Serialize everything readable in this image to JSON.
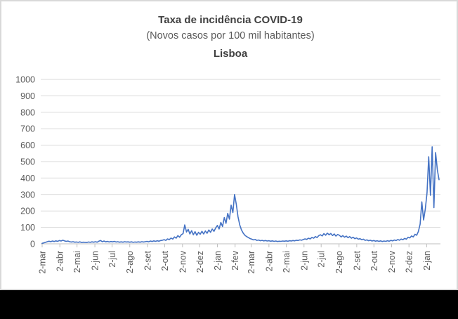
{
  "window": {
    "panel_background": "#ffffff",
    "panel_border_color": "#d9d9d9",
    "backdrop_color": "#000000"
  },
  "chart_data": {
    "type": "line",
    "title": "Taxa de incidência COVID-19",
    "subtitle": "(Novos casos por 100 mil habitantes)",
    "series_title": "Lisboa",
    "xlabel": "",
    "ylabel": "",
    "ylim": [
      0,
      1000
    ],
    "y_ticks": [
      0,
      100,
      200,
      300,
      400,
      500,
      600,
      700,
      800,
      900,
      1000
    ],
    "grid": true,
    "legend": false,
    "line_color": "#4472c4",
    "gridline_color": "#d9d9d9",
    "axis_color": "#bfbfbf",
    "tick_label_color": "#595959",
    "title_color": "#404040",
    "x_tick_labels": [
      "2-mar",
      "2-abr",
      "2-mai",
      "2-jun",
      "2-jul",
      "2-ago",
      "2-set",
      "2-out",
      "2-nov",
      "2-dez",
      "2-jan",
      "2-fev",
      "2-mar",
      "2-abr",
      "2-mai",
      "2-jun",
      "2-jul",
      "2-ago",
      "2-set",
      "2-out",
      "2-nov",
      "2-dez",
      "2-jan"
    ],
    "x_tick_indices": [
      0,
      10.3,
      20.3,
      30.7,
      40.7,
      51,
      61.3,
      71.3,
      81.7,
      91.7,
      102,
      112.3,
      121.7,
      132,
      142.1,
      152.4,
      162.4,
      172.8,
      183.1,
      193.1,
      203.4,
      213.5,
      223.8
    ],
    "x_sampling_note": "daily series from 2-mar (2020) to late jan (2022), values estimated at 3-day steps",
    "values": [
      3,
      6,
      9,
      13,
      16,
      13,
      17,
      14,
      18,
      15,
      20,
      17,
      22,
      18,
      15,
      17,
      13,
      11,
      13,
      10,
      11,
      9,
      12,
      8,
      10,
      9,
      8,
      11,
      9,
      12,
      10,
      13,
      10,
      16,
      20,
      13,
      17,
      12,
      15,
      11,
      14,
      12,
      15,
      11,
      13,
      10,
      12,
      10,
      13,
      11,
      12,
      10,
      12,
      9,
      11,
      10,
      12,
      10,
      13,
      11,
      13,
      15,
      12,
      17,
      14,
      18,
      15,
      19,
      16,
      20,
      22,
      25,
      21,
      30,
      25,
      35,
      29,
      42,
      34,
      50,
      40,
      55,
      62,
      115,
      72,
      88,
      60,
      80,
      55,
      74,
      52,
      70,
      58,
      76,
      60,
      78,
      64,
      84,
      70,
      90,
      76,
      96,
      112,
      90,
      130,
      105,
      160,
      125,
      185,
      150,
      235,
      190,
      300,
      240,
      165,
      115,
      85,
      65,
      52,
      44,
      38,
      32,
      28,
      24,
      26,
      21,
      23,
      19,
      21,
      18,
      20,
      17,
      19,
      16,
      18,
      15,
      17,
      14,
      16,
      15,
      17,
      16,
      18,
      16,
      19,
      17,
      20,
      18,
      22,
      20,
      24,
      22,
      26,
      30,
      27,
      34,
      30,
      39,
      34,
      44,
      38,
      50,
      55,
      48,
      62,
      52,
      65,
      55,
      63,
      50,
      60,
      47,
      57,
      52,
      42,
      50,
      40,
      47,
      37,
      44,
      34,
      40,
      31,
      36,
      28,
      31,
      25,
      28,
      21,
      24,
      19,
      22,
      17,
      20,
      16,
      19,
      15,
      18,
      14,
      17,
      15,
      19,
      16,
      21,
      18,
      23,
      20,
      26,
      22,
      29,
      25,
      33,
      28,
      40,
      36,
      48,
      42,
      58,
      52,
      75,
      120,
      255,
      145,
      210,
      310,
      530,
      295,
      590,
      220,
      555,
      450,
      390
    ]
  }
}
